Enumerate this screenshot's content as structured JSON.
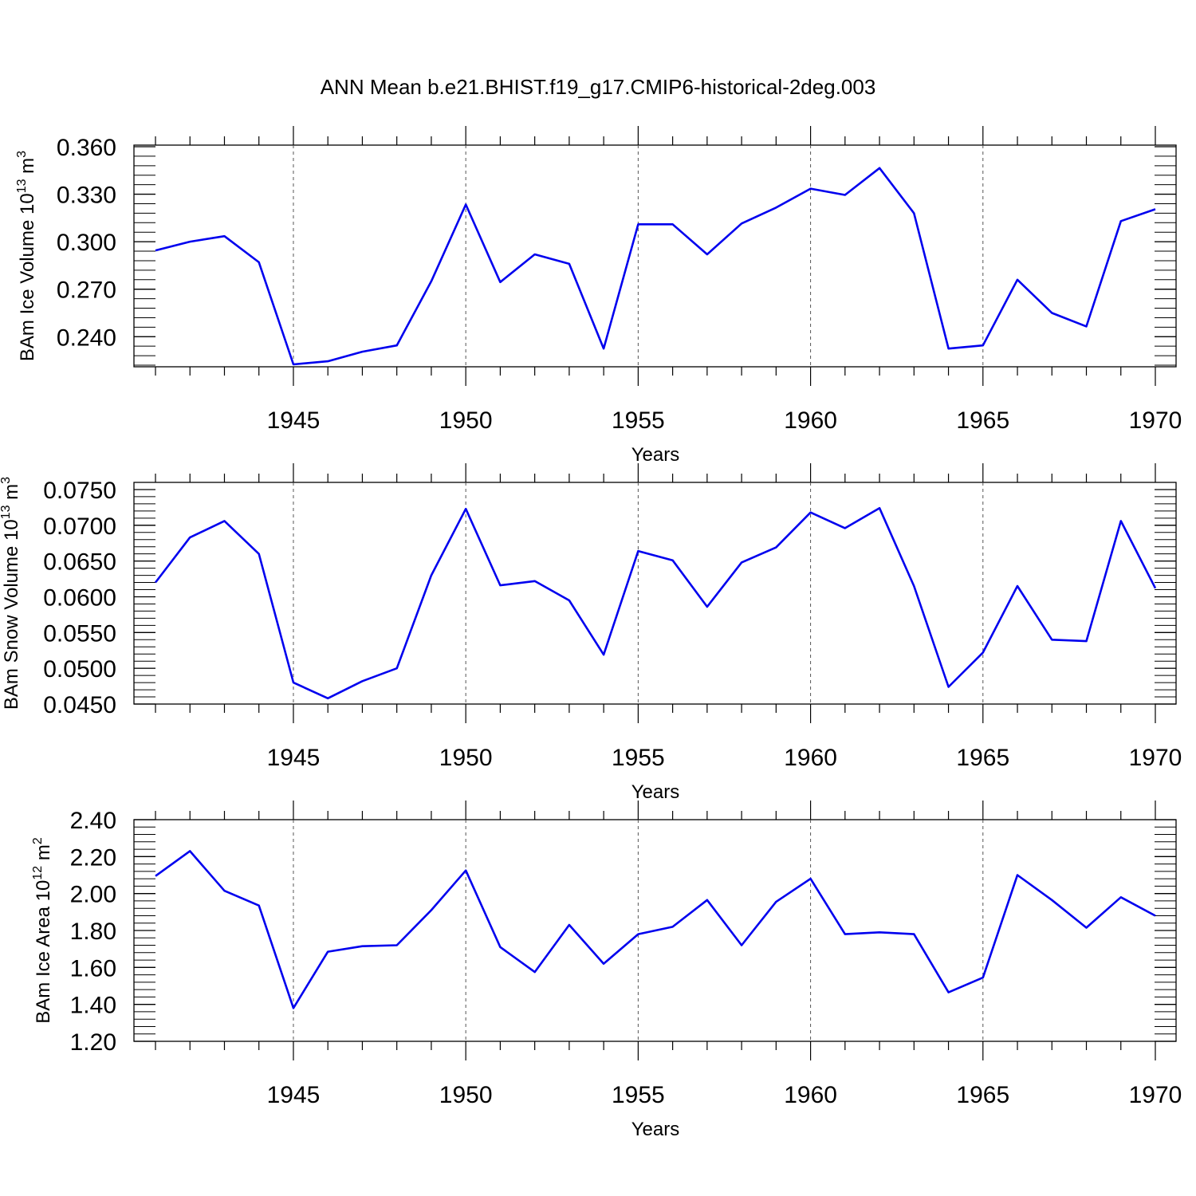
{
  "title": "ANN Mean b.e21.BHIST.f19_g17.CMIP6-historical-2deg.003",
  "chart_data": [
    {
      "type": "line",
      "ylabel": "BAm Ice Volume 10",
      "ylabel_exp": "13",
      "ylabel_unit": " m",
      "ylabel_unit_exp": "3",
      "xlabel": "Years",
      "xlim": [
        1941,
        1970
      ],
      "ylim": [
        0.221,
        0.361
      ],
      "yticks": [
        "0.240",
        "0.270",
        "0.300",
        "0.330",
        "0.360"
      ],
      "xticks": [
        "1945",
        "1950",
        "1955",
        "1960",
        "1965",
        "1970"
      ],
      "line_color": "#0000ee",
      "x": [
        1941,
        1942,
        1943,
        1944,
        1945,
        1946,
        1947,
        1948,
        1949,
        1950,
        1951,
        1952,
        1953,
        1954,
        1955,
        1956,
        1957,
        1958,
        1959,
        1960,
        1961,
        1962,
        1963,
        1964,
        1965,
        1966,
        1967,
        1968,
        1969,
        1970
      ],
      "y": [
        0.2945,
        0.3,
        0.3035,
        0.287,
        0.2225,
        0.2245,
        0.2305,
        0.2345,
        0.275,
        0.3235,
        0.2745,
        0.292,
        0.286,
        0.2325,
        0.311,
        0.311,
        0.292,
        0.3115,
        0.3215,
        0.3335,
        0.3295,
        0.3465,
        0.318,
        0.2325,
        0.2345,
        0.276,
        0.255,
        0.2465,
        0.313,
        0.3205
      ]
    },
    {
      "type": "line",
      "ylabel": "BAm Snow Volume 10",
      "ylabel_exp": "13",
      "ylabel_unit": " m",
      "ylabel_unit_exp": "3",
      "xlabel": "Years",
      "xlim": [
        1941,
        1970
      ],
      "ylim": [
        0.045,
        0.076
      ],
      "yticks": [
        "0.0450",
        "0.0500",
        "0.0550",
        "0.0600",
        "0.0650",
        "0.0700",
        "0.0750"
      ],
      "xticks": [
        "1945",
        "1950",
        "1955",
        "1960",
        "1965",
        "1970"
      ],
      "line_color": "#0000ee",
      "x": [
        1941,
        1942,
        1943,
        1944,
        1945,
        1946,
        1947,
        1948,
        1949,
        1950,
        1951,
        1952,
        1953,
        1954,
        1955,
        1956,
        1957,
        1958,
        1959,
        1960,
        1961,
        1962,
        1963,
        1964,
        1965,
        1966,
        1967,
        1968,
        1969,
        1970
      ],
      "y": [
        0.062,
        0.0683,
        0.0706,
        0.066,
        0.048,
        0.0458,
        0.0482,
        0.05,
        0.063,
        0.0723,
        0.0616,
        0.0622,
        0.0595,
        0.0519,
        0.0664,
        0.0651,
        0.0586,
        0.0648,
        0.0669,
        0.0718,
        0.0696,
        0.0724,
        0.0615,
        0.0474,
        0.0522,
        0.0615,
        0.054,
        0.0538,
        0.0706,
        0.0612
      ]
    },
    {
      "type": "line",
      "ylabel": "BAm Ice Area 10",
      "ylabel_exp": "12",
      "ylabel_unit": " m",
      "ylabel_unit_exp": "2",
      "xlabel": "Years",
      "xlim": [
        1941,
        1970
      ],
      "ylim": [
        1.2,
        2.4
      ],
      "yticks": [
        "1.20",
        "1.40",
        "1.60",
        "1.80",
        "2.00",
        "2.20",
        "2.40"
      ],
      "xticks": [
        "1945",
        "1950",
        "1955",
        "1960",
        "1965",
        "1970"
      ],
      "line_color": "#0000ee",
      "x": [
        1941,
        1942,
        1943,
        1944,
        1945,
        1946,
        1947,
        1948,
        1949,
        1950,
        1951,
        1952,
        1953,
        1954,
        1955,
        1956,
        1957,
        1958,
        1959,
        1960,
        1961,
        1962,
        1963,
        1964,
        1965,
        1966,
        1967,
        1968,
        1969,
        1970
      ],
      "y": [
        2.095,
        2.23,
        2.015,
        1.935,
        1.38,
        1.685,
        1.715,
        1.72,
        1.91,
        2.125,
        1.71,
        1.575,
        1.83,
        1.62,
        1.78,
        1.82,
        1.965,
        1.72,
        1.955,
        2.08,
        1.78,
        1.79,
        1.78,
        1.465,
        1.545,
        2.1,
        1.965,
        1.815,
        1.98,
        1.88
      ]
    }
  ]
}
